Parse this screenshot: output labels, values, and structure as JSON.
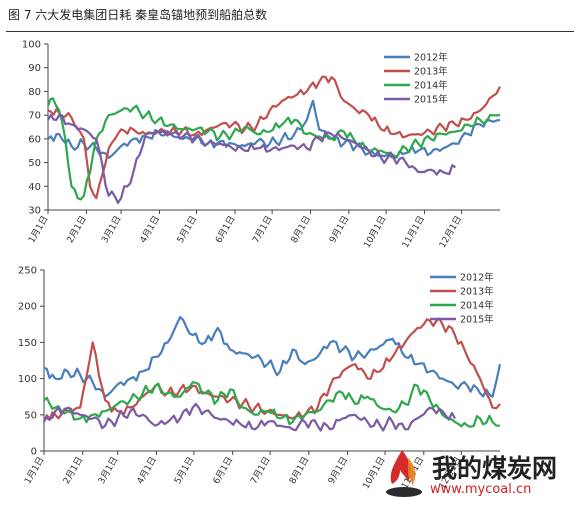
{
  "caption": "图 7 六大发电集团日耗 秦皇岛锚地预到船舶总数",
  "colors": {
    "2012": "#4a7ebb",
    "2013": "#c0504d",
    "2014": "#2ea84d",
    "2015": "#7b5aa6"
  },
  "x_tick_labels": [
    "1月1日",
    "2月1日",
    "3月1日",
    "4月1日",
    "5月1日",
    "6月1日",
    "7月1日",
    "8月1日",
    "9月1日",
    "10月1日",
    "11月1日",
    "12月1日"
  ],
  "watermark": {
    "brand": "我的煤炭网",
    "url": "www.mycoal.cn"
  },
  "chart_data": [
    {
      "type": "line",
      "x_unit": "day of year (1 = 1月1日)",
      "ylim": [
        30,
        100
      ],
      "yticks": [
        30,
        40,
        50,
        60,
        70,
        80,
        90,
        100
      ],
      "grid": false,
      "legend_position": "top-right",
      "series": [
        {
          "name": "2012年",
          "x": [
            1,
            10,
            20,
            30,
            40,
            50,
            60,
            70,
            80,
            90,
            100,
            110,
            120,
            130,
            140,
            150,
            160,
            170,
            180,
            190,
            200,
            210,
            215,
            220,
            230,
            240,
            250,
            260,
            270,
            280,
            290,
            300,
            310,
            320,
            330,
            340,
            350,
            366
          ],
          "values": [
            60,
            62,
            57,
            58,
            56,
            52,
            57,
            60,
            61,
            63,
            62,
            60,
            61,
            58,
            59,
            58,
            57,
            59,
            58,
            60,
            62,
            68,
            76,
            64,
            60,
            58,
            57,
            54,
            53,
            52,
            54,
            55,
            54,
            56,
            58,
            62,
            66,
            68
          ]
        },
        {
          "name": "2013年",
          "x": [
            1,
            10,
            20,
            30,
            35,
            40,
            45,
            50,
            55,
            60,
            70,
            80,
            90,
            100,
            110,
            120,
            130,
            140,
            150,
            160,
            170,
            180,
            190,
            200,
            210,
            220,
            230,
            240,
            250,
            260,
            270,
            280,
            290,
            300,
            310,
            320,
            330,
            340,
            350,
            360,
            366
          ],
          "values": [
            72,
            71,
            69,
            60,
            40,
            35,
            45,
            56,
            60,
            64,
            64,
            62,
            63,
            63,
            64,
            62,
            64,
            66,
            66,
            64,
            66,
            72,
            76,
            78,
            80,
            84,
            86,
            76,
            72,
            70,
            64,
            62,
            61,
            62,
            63,
            65,
            66,
            68,
            72,
            78,
            82
          ]
        },
        {
          "name": "2014年",
          "x": [
            1,
            5,
            10,
            15,
            20,
            25,
            30,
            40,
            50,
            60,
            70,
            80,
            90,
            100,
            110,
            120,
            130,
            140,
            150,
            160,
            170,
            180,
            190,
            200,
            210,
            220,
            230,
            240,
            250,
            260,
            270,
            280,
            290,
            300,
            310,
            320,
            330,
            340,
            350,
            366
          ],
          "values": [
            74,
            77,
            72,
            60,
            40,
            35,
            36,
            60,
            70,
            72,
            73,
            70,
            68,
            66,
            64,
            64,
            63,
            61,
            62,
            65,
            62,
            63,
            66,
            68,
            62,
            61,
            60,
            63,
            58,
            55,
            55,
            53,
            56,
            58,
            60,
            62,
            63,
            66,
            68,
            70
          ]
        },
        {
          "name": "2015年",
          "x": [
            1,
            10,
            20,
            30,
            40,
            50,
            60,
            70,
            80,
            90,
            100,
            110,
            120,
            130,
            140,
            150,
            160,
            170,
            180,
            190,
            200,
            210,
            220,
            230,
            240,
            250,
            260,
            270,
            280,
            290,
            300,
            310,
            320,
            330
          ],
          "values": [
            68,
            70,
            66,
            64,
            60,
            36,
            35,
            46,
            62,
            63,
            62,
            61,
            60,
            58,
            58,
            56,
            55,
            56,
            55,
            56,
            57,
            56,
            60,
            62,
            60,
            58,
            55,
            52,
            52,
            50,
            46,
            47,
            46,
            48
          ]
        }
      ]
    },
    {
      "type": "line",
      "x_unit": "day of year (1 = 1月1日)",
      "ylim": [
        0,
        250
      ],
      "yticks": [
        0,
        50,
        100,
        150,
        200,
        250
      ],
      "grid": false,
      "legend_position": "top-right",
      "series": [
        {
          "name": "2012年",
          "x": [
            1,
            10,
            20,
            30,
            40,
            50,
            60,
            70,
            80,
            90,
            100,
            110,
            120,
            130,
            140,
            150,
            160,
            170,
            180,
            190,
            200,
            210,
            220,
            230,
            240,
            250,
            260,
            270,
            280,
            290,
            300,
            310,
            320,
            330,
            340,
            350,
            360,
            366
          ],
          "values": [
            115,
            100,
            110,
            105,
            95,
            75,
            92,
            100,
            110,
            130,
            150,
            185,
            160,
            150,
            170,
            140,
            135,
            130,
            120,
            110,
            140,
            120,
            130,
            150,
            140,
            130,
            135,
            145,
            155,
            130,
            120,
            110,
            100,
            90,
            90,
            80,
            75,
            120
          ]
        },
        {
          "name": "2013年",
          "x": [
            1,
            10,
            20,
            30,
            40,
            50,
            60,
            70,
            80,
            90,
            100,
            110,
            120,
            130,
            140,
            150,
            160,
            170,
            180,
            190,
            200,
            210,
            220,
            230,
            240,
            250,
            260,
            270,
            280,
            290,
            300,
            310,
            320,
            330,
            340,
            350,
            360,
            366
          ],
          "values": [
            45,
            50,
            55,
            60,
            150,
            70,
            55,
            60,
            75,
            90,
            80,
            85,
            90,
            80,
            75,
            70,
            65,
            60,
            55,
            50,
            45,
            50,
            60,
            90,
            110,
            120,
            100,
            110,
            130,
            150,
            170,
            180,
            175,
            160,
            130,
            100,
            60,
            65
          ]
        },
        {
          "name": "2014年",
          "x": [
            1,
            10,
            20,
            30,
            40,
            50,
            60,
            70,
            80,
            90,
            100,
            110,
            120,
            130,
            140,
            150,
            160,
            170,
            180,
            190,
            200,
            210,
            220,
            230,
            240,
            250,
            260,
            270,
            280,
            290,
            300,
            310,
            320,
            330,
            340,
            350,
            360,
            366
          ],
          "values": [
            70,
            60,
            55,
            45,
            50,
            55,
            65,
            70,
            80,
            90,
            80,
            75,
            95,
            80,
            70,
            85,
            60,
            50,
            55,
            45,
            40,
            50,
            55,
            70,
            80,
            65,
            75,
            60,
            55,
            65,
            90,
            70,
            50,
            40,
            35,
            45,
            40,
            35
          ]
        },
        {
          "name": "2015年",
          "x": [
            1,
            10,
            20,
            30,
            40,
            50,
            60,
            70,
            80,
            90,
            100,
            110,
            120,
            130,
            140,
            150,
            160,
            170,
            180,
            190,
            200,
            210,
            220,
            230,
            240,
            250,
            260,
            270,
            280,
            290,
            300,
            310,
            320,
            330
          ],
          "values": [
            40,
            55,
            60,
            50,
            45,
            35,
            45,
            55,
            50,
            35,
            40,
            45,
            60,
            55,
            45,
            40,
            35,
            30,
            40,
            35,
            30,
            40,
            35,
            30,
            45,
            50,
            40,
            35,
            40,
            30,
            45,
            60,
            55,
            45
          ]
        }
      ]
    }
  ]
}
